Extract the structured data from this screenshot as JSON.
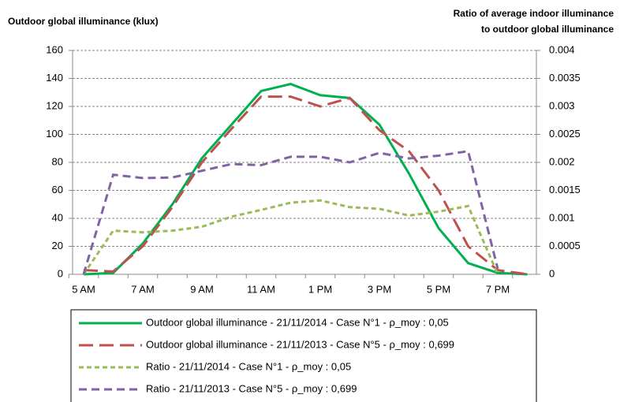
{
  "chart_data": {
    "type": "line",
    "y_title": "Outdoor global illuminance (klux)",
    "y2_title": [
      "Ratio of average indoor illuminance",
      "to outdoor global illuminance"
    ],
    "categories": [
      "5 AM",
      null,
      "7 AM",
      null,
      "9 AM",
      null,
      "11 AM",
      null,
      "1 PM",
      null,
      "3 PM",
      null,
      "5 PM",
      null,
      "7 PM",
      null
    ],
    "ylim": [
      0,
      160
    ],
    "yticks": [
      0,
      20,
      40,
      60,
      80,
      100,
      120,
      140,
      160
    ],
    "y2lim": [
      0,
      0.004
    ],
    "y2ticks": [
      0,
      0.0005,
      0.001,
      0.0015,
      0.002,
      0.0025,
      0.003,
      0.0035,
      0.004
    ],
    "grid": true,
    "series": [
      {
        "name": "Outdoor global illuminance - 21/11/2014 - Case N°1 - ρ_moy : 0,05",
        "color": "#00b050",
        "dash": "solid",
        "values": [
          0,
          1,
          22,
          50,
          83,
          107,
          131,
          136,
          128,
          126,
          107,
          72,
          33,
          8,
          1,
          0
        ]
      },
      {
        "name": "Outdoor global illuminance - 21/11/2013 - Case N°5 - ρ_moy : 0,699",
        "color": "#c0504d",
        "dash": "long",
        "values": [
          3,
          2,
          20,
          48,
          80,
          104,
          127,
          127,
          120,
          126,
          103,
          88,
          60,
          20,
          3,
          0
        ]
      },
      {
        "name": "Ratio - 21/11/2014 - Case N°1 - ρ_moy : 0,05",
        "color": "#9bbb59",
        "dash": "short",
        "axis": "y2",
        "values": [
          0,
          0.00078,
          0.00075,
          0.00078,
          0.00085,
          0.00103,
          0.00115,
          0.00128,
          0.00132,
          0.0012,
          0.00117,
          0.00105,
          0.00112,
          0.00122,
          0,
          null
        ]
      },
      {
        "name": "Ratio - 21/11/2013 - Case N°5 - ρ_moy : 0,699",
        "color": "#8064a2",
        "dash": "medium",
        "axis": "y2",
        "values": [
          0,
          0.00178,
          0.00172,
          0.00173,
          0.00185,
          0.00197,
          0.00195,
          0.0021,
          0.0021,
          0.002,
          0.00217,
          0.00207,
          0.00212,
          0.0022,
          0.0001,
          null
        ]
      }
    ]
  }
}
